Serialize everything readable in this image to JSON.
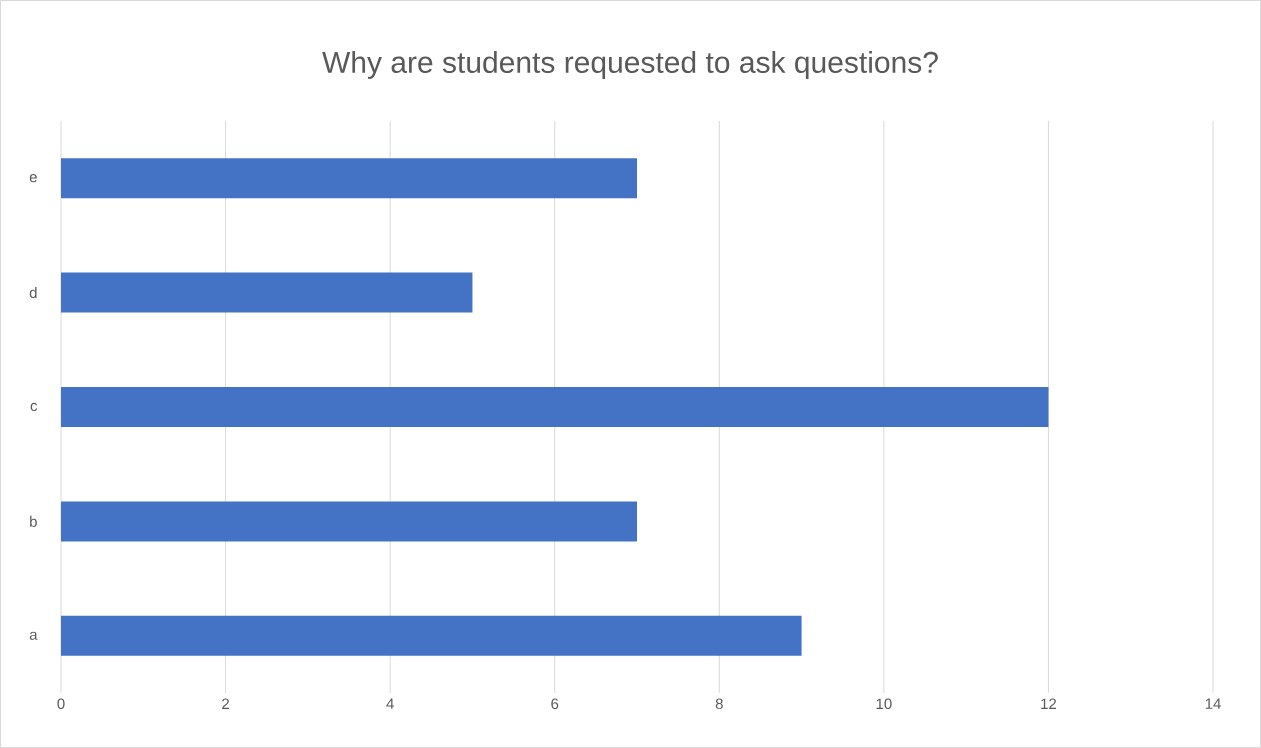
{
  "chart_data": {
    "type": "bar",
    "orientation": "horizontal",
    "title": "Why are students requested to ask questions?",
    "categories": [
      "e",
      "d",
      "c",
      "b",
      "a"
    ],
    "values": [
      7,
      5,
      12,
      7,
      9
    ],
    "color": "#4472c4",
    "xlim": [
      0,
      14
    ],
    "xticks": [
      0,
      2,
      4,
      6,
      8,
      10,
      12,
      14
    ],
    "grid": "x"
  }
}
